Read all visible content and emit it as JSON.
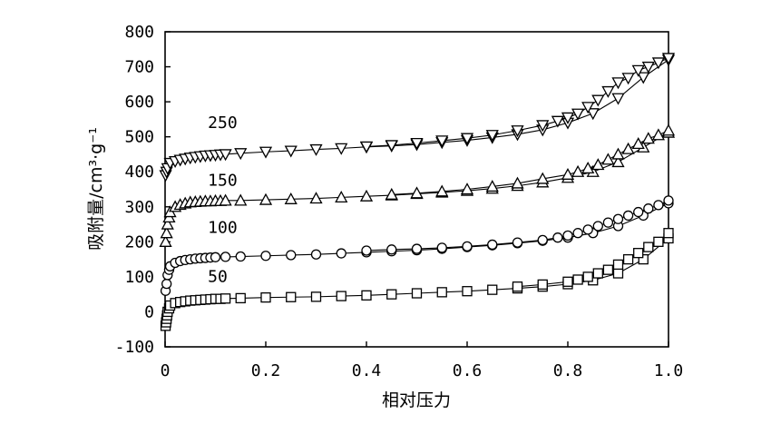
{
  "chart_data": {
    "type": "line",
    "title": "",
    "xlabel": "相对压力",
    "ylabel": "吸附量/cm³·g⁻¹",
    "xlim": [
      0,
      1.0
    ],
    "ylim": [
      -100,
      800
    ],
    "x_ticks": [
      "0",
      "0.2",
      "0.4",
      "0.6",
      "0.8",
      "1.0"
    ],
    "y_ticks": [
      "-100",
      "0",
      "100",
      "200",
      "300",
      "400",
      "500",
      "600",
      "700",
      "800"
    ],
    "grid": false,
    "legend": "none",
    "series": [
      {
        "name": "250",
        "marker": "triangle-down",
        "adsorption": [
          [
            0.001,
            390
          ],
          [
            0.003,
            400
          ],
          [
            0.005,
            410
          ],
          [
            0.01,
            425
          ],
          [
            0.02,
            430
          ],
          [
            0.03,
            434
          ],
          [
            0.04,
            437
          ],
          [
            0.05,
            440
          ],
          [
            0.06,
            442
          ],
          [
            0.07,
            444
          ],
          [
            0.08,
            446
          ],
          [
            0.09,
            447
          ],
          [
            0.1,
            448
          ],
          [
            0.11,
            449
          ],
          [
            0.12,
            450
          ],
          [
            0.15,
            453
          ],
          [
            0.2,
            457
          ],
          [
            0.25,
            460
          ],
          [
            0.3,
            464
          ],
          [
            0.35,
            467
          ],
          [
            0.4,
            471
          ],
          [
            0.45,
            474
          ],
          [
            0.5,
            478
          ],
          [
            0.55,
            484
          ],
          [
            0.6,
            490
          ],
          [
            0.65,
            498
          ],
          [
            0.7,
            507
          ],
          [
            0.75,
            520
          ],
          [
            0.8,
            540
          ],
          [
            0.85,
            567
          ],
          [
            0.9,
            610
          ],
          [
            0.95,
            670
          ],
          [
            1.0,
            720
          ]
        ],
        "desorption": [
          [
            1.0,
            725
          ],
          [
            0.98,
            712
          ],
          [
            0.96,
            700
          ],
          [
            0.94,
            690
          ],
          [
            0.92,
            668
          ],
          [
            0.9,
            655
          ],
          [
            0.88,
            630
          ],
          [
            0.86,
            605
          ],
          [
            0.84,
            585
          ],
          [
            0.82,
            566
          ],
          [
            0.8,
            555
          ],
          [
            0.78,
            545
          ],
          [
            0.75,
            533
          ],
          [
            0.7,
            518
          ],
          [
            0.65,
            505
          ],
          [
            0.6,
            496
          ],
          [
            0.55,
            489
          ],
          [
            0.5,
            482
          ],
          [
            0.45,
            476
          ],
          [
            0.4,
            472
          ]
        ]
      },
      {
        "name": "150",
        "marker": "triangle-up",
        "adsorption": [
          [
            0.001,
            200
          ],
          [
            0.003,
            225
          ],
          [
            0.005,
            250
          ],
          [
            0.008,
            270
          ],
          [
            0.01,
            285
          ],
          [
            0.02,
            300
          ],
          [
            0.03,
            306
          ],
          [
            0.04,
            310
          ],
          [
            0.05,
            313
          ],
          [
            0.06,
            314
          ],
          [
            0.07,
            315
          ],
          [
            0.08,
            316
          ],
          [
            0.09,
            316
          ],
          [
            0.1,
            317
          ],
          [
            0.11,
            317
          ],
          [
            0.12,
            318
          ],
          [
            0.15,
            318
          ],
          [
            0.2,
            320
          ],
          [
            0.25,
            322
          ],
          [
            0.3,
            324
          ],
          [
            0.35,
            327
          ],
          [
            0.4,
            330
          ],
          [
            0.45,
            333
          ],
          [
            0.5,
            337
          ],
          [
            0.55,
            341
          ],
          [
            0.6,
            346
          ],
          [
            0.65,
            352
          ],
          [
            0.7,
            360
          ],
          [
            0.75,
            370
          ],
          [
            0.8,
            383
          ],
          [
            0.85,
            400
          ],
          [
            0.9,
            428
          ],
          [
            0.95,
            470
          ],
          [
            1.0,
            512
          ]
        ],
        "desorption": [
          [
            1.0,
            518
          ],
          [
            0.98,
            505
          ],
          [
            0.96,
            495
          ],
          [
            0.94,
            480
          ],
          [
            0.92,
            465
          ],
          [
            0.9,
            450
          ],
          [
            0.88,
            435
          ],
          [
            0.86,
            420
          ],
          [
            0.84,
            410
          ],
          [
            0.82,
            400
          ],
          [
            0.8,
            392
          ],
          [
            0.75,
            380
          ],
          [
            0.7,
            367
          ],
          [
            0.65,
            358
          ],
          [
            0.6,
            350
          ],
          [
            0.55,
            344
          ],
          [
            0.5,
            339
          ],
          [
            0.45,
            335
          ]
        ]
      },
      {
        "name": "100",
        "marker": "circle",
        "adsorption": [
          [
            0.001,
            60
          ],
          [
            0.003,
            80
          ],
          [
            0.005,
            105
          ],
          [
            0.008,
            120
          ],
          [
            0.01,
            130
          ],
          [
            0.02,
            140
          ],
          [
            0.03,
            145
          ],
          [
            0.04,
            148
          ],
          [
            0.05,
            150
          ],
          [
            0.06,
            152
          ],
          [
            0.07,
            153
          ],
          [
            0.08,
            154
          ],
          [
            0.09,
            155
          ],
          [
            0.1,
            156
          ],
          [
            0.12,
            157
          ],
          [
            0.15,
            158
          ],
          [
            0.2,
            160
          ],
          [
            0.25,
            162
          ],
          [
            0.3,
            164
          ],
          [
            0.35,
            167
          ],
          [
            0.4,
            170
          ],
          [
            0.45,
            173
          ],
          [
            0.5,
            176
          ],
          [
            0.55,
            180
          ],
          [
            0.6,
            185
          ],
          [
            0.65,
            190
          ],
          [
            0.7,
            196
          ],
          [
            0.75,
            203
          ],
          [
            0.8,
            212
          ],
          [
            0.85,
            225
          ],
          [
            0.9,
            245
          ],
          [
            0.95,
            275
          ],
          [
            1.0,
            310
          ]
        ],
        "desorption": [
          [
            1.0,
            318
          ],
          [
            0.98,
            305
          ],
          [
            0.96,
            295
          ],
          [
            0.94,
            285
          ],
          [
            0.92,
            275
          ],
          [
            0.9,
            265
          ],
          [
            0.88,
            255
          ],
          [
            0.86,
            245
          ],
          [
            0.84,
            235
          ],
          [
            0.82,
            225
          ],
          [
            0.8,
            218
          ],
          [
            0.78,
            212
          ],
          [
            0.75,
            205
          ],
          [
            0.7,
            198
          ],
          [
            0.65,
            192
          ],
          [
            0.6,
            187
          ],
          [
            0.55,
            183
          ],
          [
            0.5,
            180
          ],
          [
            0.45,
            178
          ],
          [
            0.4,
            175
          ]
        ]
      },
      {
        "name": "50",
        "marker": "square",
        "adsorption": [
          [
            0.001,
            -40
          ],
          [
            0.002,
            -30
          ],
          [
            0.003,
            -20
          ],
          [
            0.004,
            -10
          ],
          [
            0.005,
            0
          ],
          [
            0.008,
            10
          ],
          [
            0.01,
            18
          ],
          [
            0.02,
            25
          ],
          [
            0.03,
            28
          ],
          [
            0.04,
            30
          ],
          [
            0.05,
            32
          ],
          [
            0.06,
            33
          ],
          [
            0.07,
            34
          ],
          [
            0.08,
            35
          ],
          [
            0.09,
            36
          ],
          [
            0.1,
            37
          ],
          [
            0.11,
            37
          ],
          [
            0.12,
            38
          ],
          [
            0.15,
            39
          ],
          [
            0.2,
            41
          ],
          [
            0.25,
            42
          ],
          [
            0.3,
            43
          ],
          [
            0.35,
            45
          ],
          [
            0.4,
            47
          ],
          [
            0.45,
            50
          ],
          [
            0.5,
            53
          ],
          [
            0.55,
            56
          ],
          [
            0.6,
            59
          ],
          [
            0.65,
            63
          ],
          [
            0.7,
            67
          ],
          [
            0.75,
            72
          ],
          [
            0.8,
            79
          ],
          [
            0.85,
            90
          ],
          [
            0.9,
            110
          ],
          [
            0.95,
            150
          ],
          [
            1.0,
            210
          ]
        ],
        "desorption": [
          [
            1.0,
            225
          ],
          [
            0.98,
            200
          ],
          [
            0.96,
            185
          ],
          [
            0.94,
            168
          ],
          [
            0.92,
            150
          ],
          [
            0.9,
            135
          ],
          [
            0.88,
            120
          ],
          [
            0.86,
            110
          ],
          [
            0.84,
            100
          ],
          [
            0.82,
            92
          ],
          [
            0.8,
            86
          ],
          [
            0.75,
            78
          ],
          [
            0.7,
            72
          ]
        ]
      }
    ],
    "series_label_positions_data": [
      {
        "name": "250",
        "x": 0.085,
        "y": 525
      },
      {
        "name": "150",
        "x": 0.085,
        "y": 360
      },
      {
        "name": "100",
        "x": 0.085,
        "y": 225
      },
      {
        "name": "50",
        "x": 0.085,
        "y": 85
      }
    ]
  }
}
